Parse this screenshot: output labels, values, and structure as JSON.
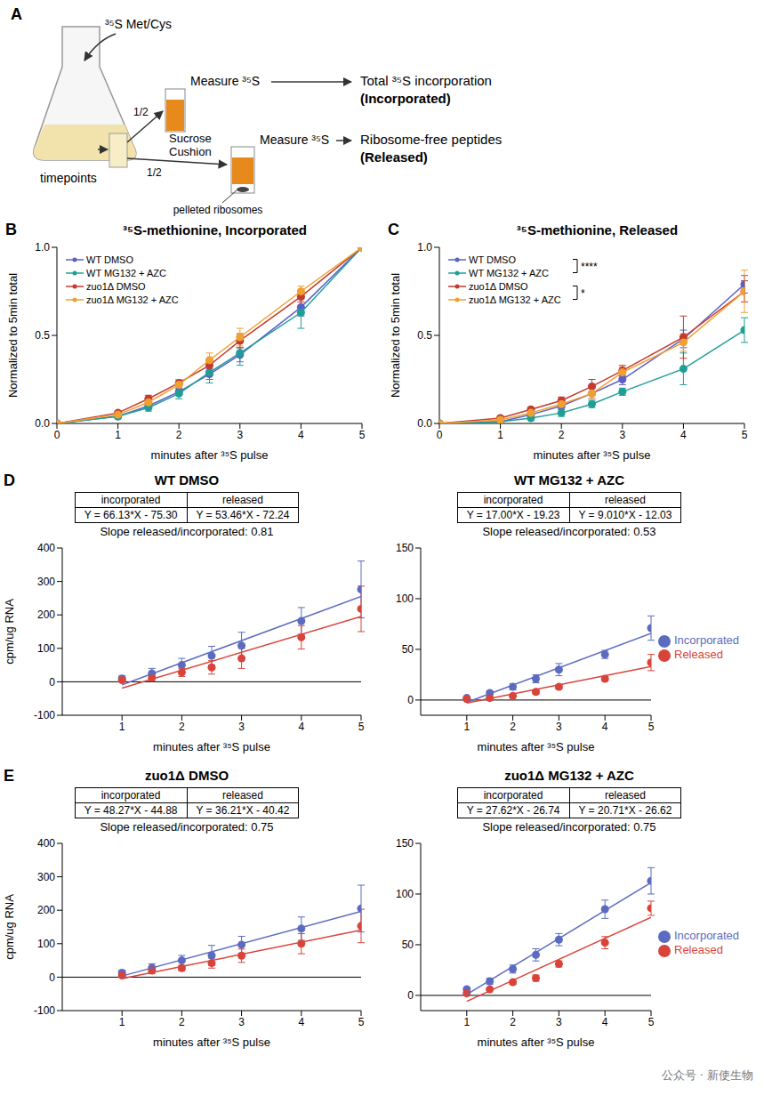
{
  "diagram": {
    "panel": "A",
    "pulse": "³⁵S Met/Cys",
    "timepoints": "timepoints",
    "split": [
      "1/2",
      "1/2"
    ],
    "measure_total": "Measure ³⁵S",
    "measure_released": "Measure ³⁵S",
    "cushion": "Sucrose Cushion",
    "pellet": "pelleted ribosomes",
    "output_total": [
      "Total ³⁵S incorporation",
      "(Incorporated)"
    ],
    "output_released": [
      "Ribosome-free peptides",
      "(Released)"
    ]
  },
  "watermark": "公众号 · 新使生物",
  "chart_data": [
    {
      "type": "line",
      "panel": "B",
      "title": "³⁵S-methionine, Incorporated",
      "x_label": "minutes after ³⁵S pulse",
      "y_label": "Normalized to 5min total",
      "xlim": [
        0,
        5
      ],
      "xticks": [
        0,
        1,
        2,
        3,
        4,
        5
      ],
      "ylim": [
        0,
        1
      ],
      "yticks": [
        {
          "value": 0,
          "label": "0.0"
        },
        {
          "value": 0.5,
          "label": "0.5"
        },
        {
          "value": 1,
          "label": "1.0"
        }
      ],
      "marker": "circle",
      "legend": "upper left",
      "x": [
        0,
        1,
        1.5,
        2,
        2.5,
        3,
        4,
        5
      ],
      "series": [
        {
          "name": "WT DMSO",
          "color": "#5c5fc9",
          "values": [
            0,
            0.04,
            0.1,
            0.18,
            0.28,
            0.39,
            0.66,
            1.0
          ],
          "error": [
            0,
            0.005,
            0.01,
            0.02,
            0.03,
            0.04,
            0.05,
            0
          ]
        },
        {
          "name": "WT MG132 + AZC",
          "color": "#1f9e96",
          "values": [
            0,
            0.04,
            0.09,
            0.17,
            0.29,
            0.4,
            0.63,
            1.0
          ],
          "error": [
            0,
            0.01,
            0.02,
            0.03,
            0.06,
            0.07,
            0.09,
            0
          ]
        },
        {
          "name": "zuo1Δ DMSO",
          "color": "#c43a2f",
          "values": [
            0,
            0.06,
            0.14,
            0.23,
            0.33,
            0.47,
            0.72,
            1.0
          ],
          "error": [
            0,
            0.01,
            0.02,
            0.02,
            0.03,
            0.04,
            0.03,
            0
          ]
        },
        {
          "name": "zuo1Δ MG132 + AZC",
          "color": "#f0a030",
          "values": [
            0,
            0.05,
            0.12,
            0.22,
            0.36,
            0.49,
            0.75,
            1.0
          ],
          "error": [
            0,
            0.01,
            0.02,
            0.03,
            0.04,
            0.05,
            0.03,
            0
          ]
        }
      ]
    },
    {
      "type": "line",
      "panel": "C",
      "title": "³⁵S-methionine, Released",
      "x_label": "minutes after ³⁵S pulse",
      "y_label": "Normalized to 5min total",
      "xlim": [
        0,
        5
      ],
      "xticks": [
        0,
        1,
        2,
        3,
        4,
        5
      ],
      "ylim": [
        0,
        1
      ],
      "yticks": [
        {
          "value": 0,
          "label": "0.0"
        },
        {
          "value": 0.5,
          "label": "0.5"
        },
        {
          "value": 1,
          "label": "1.0"
        }
      ],
      "marker": "circle",
      "legend": "upper left",
      "x": [
        0,
        1,
        1.5,
        2,
        2.5,
        3,
        4,
        5
      ],
      "series": [
        {
          "name": "WT DMSO",
          "color": "#5c5fc9",
          "values": [
            0,
            0.01,
            0.05,
            0.1,
            0.17,
            0.25,
            0.48,
            0.79
          ],
          "error": [
            0,
            0.005,
            0.01,
            0.02,
            0.03,
            0.03,
            0.05,
            0.05
          ]
        },
        {
          "name": "WT MG132 + AZC",
          "color": "#1f9e96",
          "values": [
            0,
            0.01,
            0.03,
            0.06,
            0.11,
            0.18,
            0.31,
            0.53
          ],
          "error": [
            0,
            0.005,
            0.01,
            0.02,
            0.02,
            0.02,
            0.09,
            0.07
          ]
        },
        {
          "name": "zuo1Δ DMSO",
          "color": "#c43a2f",
          "values": [
            0,
            0.03,
            0.08,
            0.13,
            0.21,
            0.3,
            0.49,
            0.75
          ],
          "error": [
            0,
            0.01,
            0.01,
            0.02,
            0.04,
            0.03,
            0.12,
            0.06
          ]
        },
        {
          "name": "zuo1Δ MG132 + AZC",
          "color": "#f0a030",
          "values": [
            0,
            0.02,
            0.06,
            0.11,
            0.17,
            0.29,
            0.46,
            0.75
          ],
          "error": [
            0,
            0.01,
            0.02,
            0.02,
            0.03,
            0.03,
            0.05,
            0.12
          ]
        }
      ],
      "significance": [
        {
          "label": "****",
          "between": [
            "WT DMSO",
            "WT MG132 + AZC"
          ]
        },
        {
          "label": "*",
          "between": [
            "zuo1Δ DMSO",
            "zuo1Δ MG132 + AZC"
          ]
        }
      ]
    },
    {
      "type": "scatter",
      "panel": "D",
      "title": "WT DMSO",
      "x_label": "minutes after ³⁵S pulse",
      "y_label": "cpm/ug RNA",
      "xlim": [
        0,
        5
      ],
      "xticks": [
        1,
        2,
        3,
        4,
        5
      ],
      "ylim": [
        -100,
        400
      ],
      "yticks": [
        -100,
        0,
        100,
        200,
        300,
        400
      ],
      "marker": "circle",
      "fit_ratio": "Slope released/incorporated: 0.81",
      "x": [
        1,
        1.5,
        2,
        2.5,
        3,
        4,
        5
      ],
      "series": [
        {
          "color": "#5b6bc0",
          "values": [
            10,
            25,
            50,
            78,
            108,
            182,
            276
          ],
          "error": [
            8,
            15,
            20,
            28,
            40,
            40,
            85
          ],
          "fit": {
            "head": "incorporated",
            "slope": 66.13,
            "intercept": -75.3,
            "label": "Y = 66.13*X - 75.30"
          }
        },
        {
          "color": "#d9443a",
          "values": [
            5,
            12,
            28,
            43,
            70,
            133,
            218
          ],
          "error": [
            4,
            10,
            12,
            20,
            30,
            35,
            68
          ],
          "fit": {
            "head": "released",
            "slope": 53.46,
            "intercept": -72.24,
            "label": "Y = 53.46*X - 72.24"
          }
        }
      ]
    },
    {
      "type": "scatter",
      "title": "WT MG132 + AZC",
      "x_label": "minutes after ³⁵S pulse",
      "xlim": [
        0,
        5
      ],
      "xticks": [
        1,
        2,
        3,
        4,
        5
      ],
      "ylim": [
        -15,
        150
      ],
      "yticks": [
        0,
        50,
        100,
        150
      ],
      "marker": "circle",
      "legend": "right",
      "fit_ratio": "Slope released/incorporated: 0.53",
      "x": [
        1,
        1.5,
        2,
        2.5,
        3,
        4,
        5
      ],
      "series": [
        {
          "name": "Incorporated",
          "color": "#5b6bc0",
          "values": [
            2,
            7,
            13,
            21,
            30,
            45,
            71
          ],
          "error": [
            1,
            2,
            3,
            4,
            6,
            4,
            12
          ],
          "fit": {
            "head": "incorporated",
            "slope": 17.0,
            "intercept": -19.23,
            "label": "Y = 17.00*X - 19.23"
          }
        },
        {
          "name": "Released",
          "color": "#d9443a",
          "values": [
            1,
            2,
            4,
            8,
            13,
            21,
            37
          ],
          "error": [
            0.5,
            1,
            1,
            2,
            2,
            2,
            8
          ],
          "fit": {
            "head": "released",
            "slope": 9.01,
            "intercept": -12.03,
            "label": "Y = 9.010*X - 12.03"
          }
        }
      ]
    },
    {
      "type": "scatter",
      "panel": "E",
      "title": "zuo1Δ DMSO",
      "x_label": "minutes after ³⁵S pulse",
      "y_label": "cpm/ug RNA",
      "xlim": [
        0,
        5
      ],
      "xticks": [
        1,
        2,
        3,
        4,
        5
      ],
      "ylim": [
        -100,
        400
      ],
      "yticks": [
        -100,
        0,
        100,
        200,
        300,
        400
      ],
      "marker": "circle",
      "fit_ratio": "Slope released/incorporated: 0.75",
      "x": [
        1,
        1.5,
        2,
        2.5,
        3,
        4,
        5
      ],
      "series": [
        {
          "color": "#5b6bc0",
          "values": [
            13,
            28,
            50,
            65,
            97,
            145,
            205
          ],
          "error": [
            8,
            12,
            15,
            30,
            25,
            35,
            70
          ],
          "fit": {
            "head": "incorporated",
            "slope": 48.27,
            "intercept": -44.88,
            "label": "Y = 48.27*X - 44.88"
          }
        },
        {
          "color": "#d9443a",
          "values": [
            5,
            20,
            27,
            42,
            64,
            100,
            153
          ],
          "error": [
            4,
            10,
            8,
            15,
            20,
            30,
            50
          ],
          "fit": {
            "head": "released",
            "slope": 36.21,
            "intercept": -40.42,
            "label": "Y = 36.21*X - 40.42"
          }
        }
      ]
    },
    {
      "type": "scatter",
      "title": "zuo1Δ MG132 + AZC",
      "x_label": "minutes after ³⁵S pulse",
      "xlim": [
        0,
        5
      ],
      "xticks": [
        1,
        2,
        3,
        4,
        5
      ],
      "ylim": [
        -15,
        150
      ],
      "yticks": [
        0,
        50,
        100,
        150
      ],
      "marker": "circle",
      "legend": "right",
      "fit_ratio": "Slope released/incorporated: 0.75",
      "x": [
        1,
        1.5,
        2,
        2.5,
        3,
        4,
        5
      ],
      "series": [
        {
          "name": "Incorporated",
          "color": "#5b6bc0",
          "values": [
            6,
            14,
            26,
            40,
            55,
            85,
            113
          ],
          "error": [
            2,
            3,
            4,
            6,
            6,
            9,
            13
          ],
          "fit": {
            "head": "incorporated",
            "slope": 27.62,
            "intercept": -26.74,
            "label": "Y = 27.62*X - 26.74"
          }
        },
        {
          "name": "Released",
          "color": "#d9443a",
          "values": [
            2,
            6,
            13,
            17,
            31,
            52,
            86
          ],
          "error": [
            1,
            1,
            2,
            3,
            3,
            6,
            7
          ],
          "fit": {
            "head": "released",
            "slope": 20.71,
            "intercept": -26.62,
            "label": "Y = 20.71*X - 26.62"
          }
        }
      ]
    }
  ]
}
